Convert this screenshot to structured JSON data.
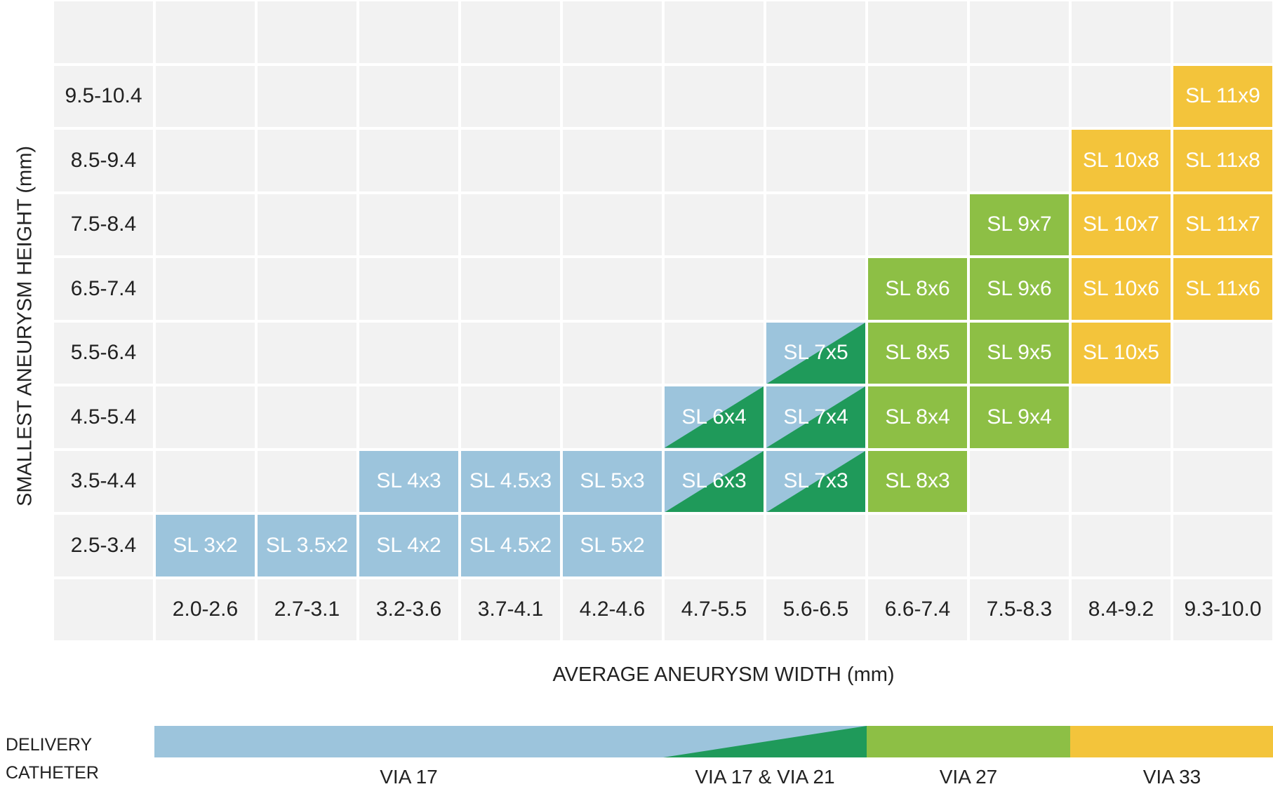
{
  "chart_data": {
    "type": "heatmap",
    "xlabel": "AVERAGE ANEURYSM WIDTH (mm)",
    "ylabel": "SMALLEST ANEURYSM HEIGHT (mm)",
    "x_categories": [
      "2.0-2.6",
      "2.7-3.1",
      "3.2-3.6",
      "3.7-4.1",
      "4.2-4.6",
      "4.7-5.5",
      "5.6-6.5",
      "6.6-7.4",
      "7.5-8.3",
      "8.4-9.2",
      "9.3-10.0"
    ],
    "y_categories": [
      "2.5-3.4",
      "3.5-4.4",
      "4.5-5.4",
      "5.5-6.4",
      "6.5-7.4",
      "7.5-8.4",
      "8.5-9.4",
      "9.5-10.4"
    ],
    "cells": [
      {
        "x": "2.0-2.6",
        "y": "2.5-3.4",
        "label": "SL 3x2",
        "catheter": "VIA 17"
      },
      {
        "x": "2.7-3.1",
        "y": "2.5-3.4",
        "label": "SL 3.5x2",
        "catheter": "VIA 17"
      },
      {
        "x": "3.2-3.6",
        "y": "2.5-3.4",
        "label": "SL 4x2",
        "catheter": "VIA 17"
      },
      {
        "x": "3.7-4.1",
        "y": "2.5-3.4",
        "label": "SL 4.5x2",
        "catheter": "VIA 17"
      },
      {
        "x": "4.2-4.6",
        "y": "2.5-3.4",
        "label": "SL 5x2",
        "catheter": "VIA 17"
      },
      {
        "x": "3.2-3.6",
        "y": "3.5-4.4",
        "label": "SL 4x3",
        "catheter": "VIA 17"
      },
      {
        "x": "3.7-4.1",
        "y": "3.5-4.4",
        "label": "SL 4.5x3",
        "catheter": "VIA 17"
      },
      {
        "x": "4.2-4.6",
        "y": "3.5-4.4",
        "label": "SL 5x3",
        "catheter": "VIA 17"
      },
      {
        "x": "4.7-5.5",
        "y": "3.5-4.4",
        "label": "SL 6x3",
        "catheter": "VIA 17 & VIA 21"
      },
      {
        "x": "5.6-6.5",
        "y": "3.5-4.4",
        "label": "SL 7x3",
        "catheter": "VIA 17 & VIA 21"
      },
      {
        "x": "6.6-7.4",
        "y": "3.5-4.4",
        "label": "SL 8x3",
        "catheter": "VIA 27"
      },
      {
        "x": "4.7-5.5",
        "y": "4.5-5.4",
        "label": "SL 6x4",
        "catheter": "VIA 17 & VIA 21"
      },
      {
        "x": "5.6-6.5",
        "y": "4.5-5.4",
        "label": "SL 7x4",
        "catheter": "VIA 17 & VIA 21"
      },
      {
        "x": "6.6-7.4",
        "y": "4.5-5.4",
        "label": "SL 8x4",
        "catheter": "VIA 27"
      },
      {
        "x": "7.5-8.3",
        "y": "4.5-5.4",
        "label": "SL 9x4",
        "catheter": "VIA 27"
      },
      {
        "x": "5.6-6.5",
        "y": "5.5-6.4",
        "label": "SL 7x5",
        "catheter": "VIA 17 & VIA 21"
      },
      {
        "x": "6.6-7.4",
        "y": "5.5-6.4",
        "label": "SL 8x5",
        "catheter": "VIA 27"
      },
      {
        "x": "7.5-8.3",
        "y": "5.5-6.4",
        "label": "SL 9x5",
        "catheter": "VIA 27"
      },
      {
        "x": "8.4-9.2",
        "y": "5.5-6.4",
        "label": "SL 10x5",
        "catheter": "VIA 33"
      },
      {
        "x": "6.6-7.4",
        "y": "6.5-7.4",
        "label": "SL 8x6",
        "catheter": "VIA 27"
      },
      {
        "x": "7.5-8.3",
        "y": "6.5-7.4",
        "label": "SL 9x6",
        "catheter": "VIA 27"
      },
      {
        "x": "8.4-9.2",
        "y": "6.5-7.4",
        "label": "SL 10x6",
        "catheter": "VIA 33"
      },
      {
        "x": "9.3-10.0",
        "y": "6.5-7.4",
        "label": "SL 11x6",
        "catheter": "VIA 33"
      },
      {
        "x": "7.5-8.3",
        "y": "7.5-8.4",
        "label": "SL 9x7",
        "catheter": "VIA 27"
      },
      {
        "x": "8.4-9.2",
        "y": "7.5-8.4",
        "label": "SL 10x7",
        "catheter": "VIA 33"
      },
      {
        "x": "9.3-10.0",
        "y": "7.5-8.4",
        "label": "SL 11x7",
        "catheter": "VIA 33"
      },
      {
        "x": "8.4-9.2",
        "y": "8.5-9.4",
        "label": "SL 10x8",
        "catheter": "VIA 33"
      },
      {
        "x": "9.3-10.0",
        "y": "8.5-9.4",
        "label": "SL 11x8",
        "catheter": "VIA 33"
      },
      {
        "x": "9.3-10.0",
        "y": "9.5-10.4",
        "label": "SL 11x9",
        "catheter": "VIA 33"
      }
    ],
    "legend": {
      "title_line1": "DELIVERY",
      "title_line2": "CATHETER",
      "entries": [
        {
          "name": "VIA 17",
          "from": "2.0-2.6",
          "to": "4.7-5.5"
        },
        {
          "name": "VIA 17 & VIA 21",
          "from": "4.7-5.5",
          "to": "5.6-6.5"
        },
        {
          "name": "VIA 27",
          "from": "6.6-7.4",
          "to": "7.5-8.3"
        },
        {
          "name": "VIA 33",
          "from": "8.4-9.2",
          "to": "9.3-10.0"
        }
      ],
      "placement": "bottom"
    },
    "colors": {
      "VIA 17": "#9cc4dc",
      "VIA 21": "#1f9a5a",
      "VIA 27": "#8dbf45",
      "VIA 33": "#f3c43b",
      "empty": "#f2f2f2"
    }
  }
}
